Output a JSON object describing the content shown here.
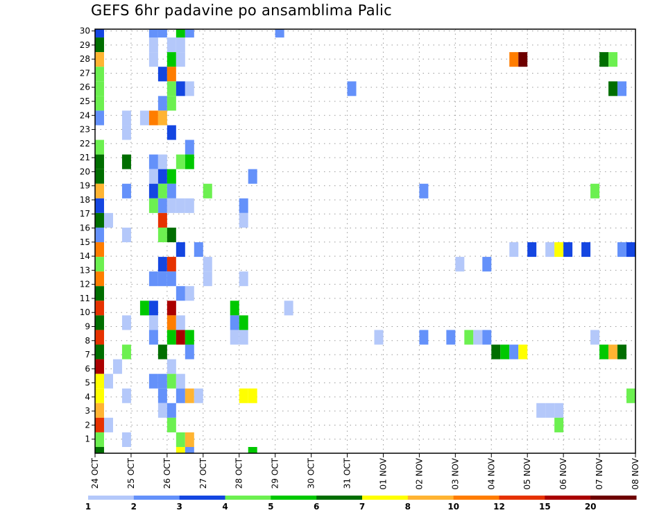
{
  "chart_data": {
    "type": "heatmap",
    "title": "GEFS 6hr padavine po ansamblima Palic",
    "xlabel": "",
    "ylabel": "",
    "x_tick_labels": [
      "24 OCT",
      "25 OCT",
      "26 OCT",
      "27 OCT",
      "28 OCT",
      "29 OCT",
      "30 OCT",
      "31 OCT",
      "01 NOV",
      "02 NOV",
      "03 NOV",
      "04 NOV",
      "05 NOV",
      "06 NOV",
      "07 NOV",
      "08 NOV"
    ],
    "x_steps_per_day": 4,
    "x_columns": 60,
    "y_tick_labels": [
      "1",
      "2",
      "3",
      "4",
      "5",
      "6",
      "7",
      "8",
      "9",
      "10",
      "11",
      "12",
      "13",
      "14",
      "15",
      "16",
      "17",
      "18",
      "19",
      "20",
      "21",
      "22",
      "23",
      "24",
      "25",
      "26",
      "27",
      "28",
      "29",
      "30"
    ],
    "y_rows": 30,
    "grid": "dotted",
    "legend": {
      "placement": "bottom",
      "labels": [
        "1",
        "2",
        "3",
        "4",
        "5",
        "6",
        "7",
        "8",
        "10",
        "12",
        "15",
        "20"
      ],
      "colors": [
        "#b4c8fa",
        "#6491fa",
        "#1446e1",
        "#6cf050",
        "#00c800",
        "#006e00",
        "#ffff00",
        "#ffb432",
        "#ff7d00",
        "#e63200",
        "#aa0000",
        "#6e0000"
      ]
    },
    "cells_format": "[time_column, member_row, color_level(1-12)]",
    "cells": [
      [
        0,
        29,
        3
      ],
      [
        6,
        29,
        2
      ],
      [
        7,
        29,
        2
      ],
      [
        9,
        29,
        5
      ],
      [
        10,
        29,
        2
      ],
      [
        20,
        29,
        2
      ],
      [
        0,
        28,
        6
      ],
      [
        6,
        28,
        1
      ],
      [
        8,
        28,
        1
      ],
      [
        9,
        28,
        1
      ],
      [
        0,
        27,
        8
      ],
      [
        6,
        27,
        1
      ],
      [
        8,
        27,
        5
      ],
      [
        9,
        27,
        1
      ],
      [
        46,
        27,
        9
      ],
      [
        47,
        27,
        12
      ],
      [
        56,
        27,
        6
      ],
      [
        57,
        27,
        4
      ],
      [
        0,
        26,
        4
      ],
      [
        7,
        26,
        3
      ],
      [
        8,
        26,
        9
      ],
      [
        0,
        25,
        4
      ],
      [
        8,
        25,
        4
      ],
      [
        9,
        25,
        3
      ],
      [
        10,
        25,
        1
      ],
      [
        28,
        25,
        2
      ],
      [
        57,
        25,
        6
      ],
      [
        58,
        25,
        2
      ],
      [
        0,
        24,
        4
      ],
      [
        7,
        24,
        2
      ],
      [
        8,
        24,
        4
      ],
      [
        0,
        23,
        2
      ],
      [
        3,
        23,
        1
      ],
      [
        5,
        23,
        1
      ],
      [
        6,
        23,
        9
      ],
      [
        7,
        23,
        8
      ],
      [
        3,
        22,
        1
      ],
      [
        8,
        22,
        3
      ],
      [
        0,
        21,
        4
      ],
      [
        10,
        21,
        2
      ],
      [
        0,
        20,
        6
      ],
      [
        3,
        20,
        6
      ],
      [
        6,
        20,
        2
      ],
      [
        7,
        20,
        1
      ],
      [
        9,
        20,
        4
      ],
      [
        10,
        20,
        5
      ],
      [
        0,
        19,
        6
      ],
      [
        6,
        19,
        1
      ],
      [
        7,
        19,
        3
      ],
      [
        8,
        19,
        5
      ],
      [
        17,
        19,
        2
      ],
      [
        0,
        18,
        8
      ],
      [
        3,
        18,
        2
      ],
      [
        6,
        18,
        3
      ],
      [
        7,
        18,
        4
      ],
      [
        8,
        18,
        2
      ],
      [
        12,
        18,
        4
      ],
      [
        36,
        18,
        2
      ],
      [
        55,
        18,
        4
      ],
      [
        0,
        17,
        3
      ],
      [
        6,
        17,
        4
      ],
      [
        7,
        17,
        2
      ],
      [
        8,
        17,
        1
      ],
      [
        9,
        17,
        1
      ],
      [
        10,
        17,
        1
      ],
      [
        16,
        17,
        2
      ],
      [
        0,
        16,
        6
      ],
      [
        1,
        16,
        1
      ],
      [
        7,
        16,
        10
      ],
      [
        16,
        16,
        1
      ],
      [
        0,
        15,
        2
      ],
      [
        3,
        15,
        1
      ],
      [
        7,
        15,
        4
      ],
      [
        8,
        15,
        6
      ],
      [
        0,
        14,
        9
      ],
      [
        9,
        14,
        3
      ],
      [
        11,
        14,
        2
      ],
      [
        46,
        14,
        1
      ],
      [
        48,
        14,
        3
      ],
      [
        50,
        14,
        1
      ],
      [
        51,
        14,
        7
      ],
      [
        52,
        14,
        3
      ],
      [
        54,
        14,
        3
      ],
      [
        58,
        14,
        2
      ],
      [
        59,
        14,
        3
      ],
      [
        0,
        13,
        4
      ],
      [
        7,
        13,
        3
      ],
      [
        8,
        13,
        10
      ],
      [
        12,
        13,
        1
      ],
      [
        40,
        13,
        1
      ],
      [
        43,
        13,
        2
      ],
      [
        0,
        12,
        9
      ],
      [
        6,
        12,
        2
      ],
      [
        7,
        12,
        2
      ],
      [
        8,
        12,
        2
      ],
      [
        12,
        12,
        1
      ],
      [
        16,
        12,
        1
      ],
      [
        0,
        11,
        6
      ],
      [
        9,
        11,
        2
      ],
      [
        10,
        11,
        1
      ],
      [
        0,
        10,
        10
      ],
      [
        5,
        10,
        5
      ],
      [
        6,
        10,
        3
      ],
      [
        8,
        10,
        11
      ],
      [
        15,
        10,
        5
      ],
      [
        21,
        10,
        1
      ],
      [
        0,
        9,
        6
      ],
      [
        3,
        9,
        1
      ],
      [
        6,
        9,
        1
      ],
      [
        8,
        9,
        9
      ],
      [
        9,
        9,
        1
      ],
      [
        15,
        9,
        2
      ],
      [
        16,
        9,
        5
      ],
      [
        0,
        8,
        10
      ],
      [
        6,
        8,
        2
      ],
      [
        8,
        8,
        5
      ],
      [
        9,
        8,
        11
      ],
      [
        10,
        8,
        5
      ],
      [
        15,
        8,
        1
      ],
      [
        16,
        8,
        1
      ],
      [
        31,
        8,
        1
      ],
      [
        36,
        8,
        2
      ],
      [
        39,
        8,
        2
      ],
      [
        41,
        8,
        4
      ],
      [
        42,
        8,
        1
      ],
      [
        43,
        8,
        2
      ],
      [
        55,
        8,
        1
      ],
      [
        0,
        7,
        6
      ],
      [
        3,
        7,
        4
      ],
      [
        7,
        7,
        6
      ],
      [
        10,
        7,
        2
      ],
      [
        44,
        7,
        6
      ],
      [
        45,
        7,
        5
      ],
      [
        46,
        7,
        2
      ],
      [
        47,
        7,
        7
      ],
      [
        56,
        7,
        5
      ],
      [
        57,
        7,
        8
      ],
      [
        58,
        7,
        6
      ],
      [
        0,
        6,
        11
      ],
      [
        2,
        6,
        1
      ],
      [
        8,
        6,
        1
      ],
      [
        0,
        5,
        7
      ],
      [
        1,
        5,
        1
      ],
      [
        6,
        5,
        2
      ],
      [
        7,
        5,
        2
      ],
      [
        8,
        5,
        4
      ],
      [
        9,
        5,
        1
      ],
      [
        0,
        4,
        7
      ],
      [
        3,
        4,
        1
      ],
      [
        7,
        4,
        2
      ],
      [
        9,
        4,
        2
      ],
      [
        10,
        4,
        8
      ],
      [
        11,
        4,
        1
      ],
      [
        16,
        4,
        7
      ],
      [
        17,
        4,
        7
      ],
      [
        59,
        4,
        4
      ],
      [
        0,
        3,
        8
      ],
      [
        7,
        3,
        1
      ],
      [
        8,
        3,
        2
      ],
      [
        49,
        3,
        1
      ],
      [
        50,
        3,
        1
      ],
      [
        51,
        3,
        1
      ],
      [
        0,
        2,
        10
      ],
      [
        1,
        2,
        1
      ],
      [
        8,
        2,
        4
      ],
      [
        51,
        2,
        4
      ],
      [
        0,
        1,
        4
      ],
      [
        3,
        1,
        1
      ],
      [
        9,
        1,
        4
      ],
      [
        10,
        1,
        8
      ],
      [
        0,
        0,
        6
      ],
      [
        9,
        0,
        7
      ],
      [
        10,
        0,
        2
      ],
      [
        17,
        0,
        5
      ]
    ]
  }
}
